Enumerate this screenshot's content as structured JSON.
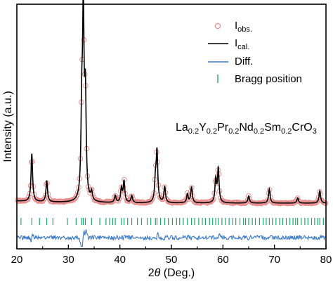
{
  "chart_data": {
    "type": "line",
    "title": "",
    "xlabel_prefix": "2",
    "xlabel_symbol": "θ",
    "xlabel_suffix": " (Deg.)",
    "ylabel": "Intensity (a.u.)",
    "xlim": [
      20,
      80
    ],
    "xticks": [
      "20",
      "30",
      "40",
      "50",
      "60",
      "70",
      "80"
    ],
    "grid": false,
    "legend_position": "top-right",
    "formula": {
      "parts": [
        {
          "text": "La",
          "sub": false
        },
        {
          "text": "0.2",
          "sub": true
        },
        {
          "text": "Y",
          "sub": false
        },
        {
          "text": "0.2",
          "sub": true
        },
        {
          "text": "Pr",
          "sub": false
        },
        {
          "text": "0.2",
          "sub": true
        },
        {
          "text": "Nd",
          "sub": false
        },
        {
          "text": "0.2",
          "sub": true
        },
        {
          "text": "Sm",
          "sub": false
        },
        {
          "text": "0.2",
          "sub": true
        },
        {
          "text": "CrO",
          "sub": false
        },
        {
          "text": "3",
          "sub": true
        }
      ]
    },
    "series": [
      {
        "name_main": "I",
        "name_sub": "obs.",
        "color": "#e88a8a",
        "style": "open-circle"
      },
      {
        "name_main": "I",
        "name_sub": "cal.",
        "color": "#000000",
        "style": "line"
      },
      {
        "name_main": "Diff.",
        "name_sub": "",
        "color": "#3a78c8",
        "style": "line"
      },
      {
        "name_main": "Bragg position",
        "name_sub": "",
        "color": "#22a36b",
        "style": "tick"
      }
    ],
    "peaks": [
      {
        "x": 22.9,
        "h": 0.27
      },
      {
        "x": 25.8,
        "h": 0.12
      },
      {
        "x": 32.6,
        "h": 0.45
      },
      {
        "x": 32.9,
        "h": 1.0
      },
      {
        "x": 33.3,
        "h": 0.55
      },
      {
        "x": 34.5,
        "h": 0.05
      },
      {
        "x": 39.1,
        "h": 0.04
      },
      {
        "x": 40.3,
        "h": 0.08
      },
      {
        "x": 40.8,
        "h": 0.12
      },
      {
        "x": 42.3,
        "h": 0.04
      },
      {
        "x": 46.9,
        "h": 0.12
      },
      {
        "x": 47.2,
        "h": 0.28
      },
      {
        "x": 48.7,
        "h": 0.09
      },
      {
        "x": 53.1,
        "h": 0.05
      },
      {
        "x": 53.9,
        "h": 0.09
      },
      {
        "x": 58.6,
        "h": 0.13
      },
      {
        "x": 59.1,
        "h": 0.19
      },
      {
        "x": 65.0,
        "h": 0.04
      },
      {
        "x": 69.0,
        "h": 0.08
      },
      {
        "x": 74.5,
        "h": 0.03
      },
      {
        "x": 78.8,
        "h": 0.07
      }
    ],
    "bragg_positions": [
      20.8,
      22.9,
      24.4,
      25.8,
      27.0,
      29.8,
      31.5,
      32.6,
      32.9,
      33.3,
      34.5,
      36.1,
      37.3,
      38.0,
      38.6,
      39.1,
      40.3,
      40.8,
      41.5,
      42.3,
      43.4,
      44.2,
      45.3,
      46.0,
      46.9,
      47.2,
      47.9,
      48.7,
      49.4,
      50.2,
      51.0,
      51.6,
      52.3,
      53.1,
      53.9,
      54.5,
      55.3,
      56.0,
      56.6,
      57.4,
      58.0,
      58.6,
      59.1,
      59.8,
      60.5,
      61.2,
      61.9,
      62.5,
      63.3,
      64.0,
      64.4,
      65.0,
      65.7,
      66.3,
      67.1,
      67.8,
      68.4,
      69.0,
      69.6,
      70.3,
      71.0,
      71.6,
      72.3,
      73.0,
      73.6,
      74.1,
      74.5,
      75.2,
      75.9,
      76.5,
      77.2,
      77.8,
      78.4,
      78.8,
      79.5
    ]
  }
}
